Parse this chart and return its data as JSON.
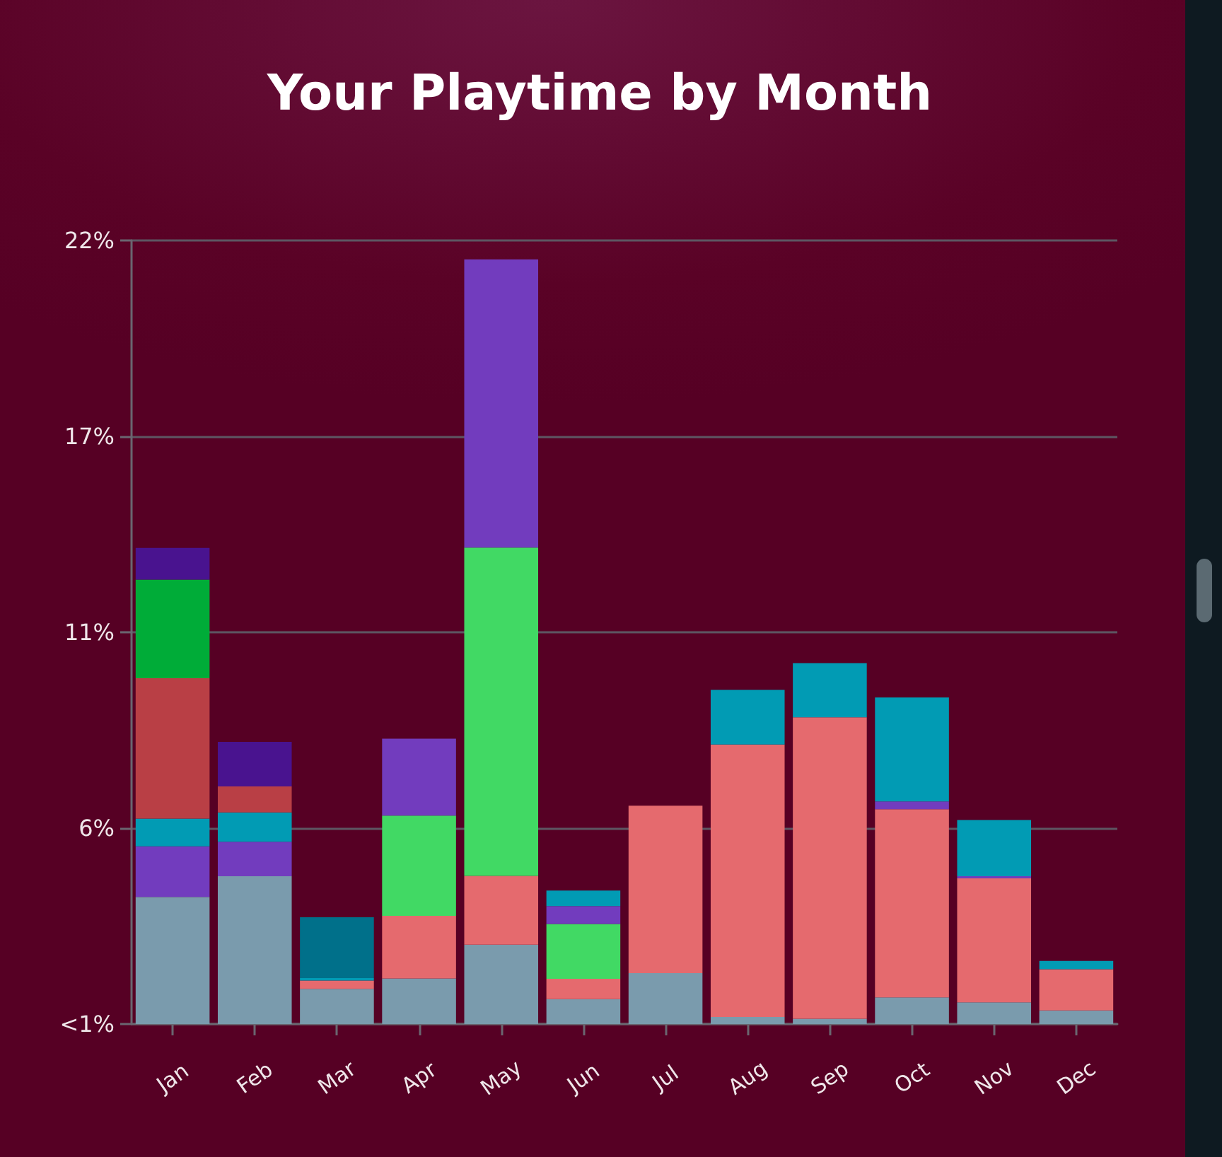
{
  "chart_data": {
    "type": "bar",
    "title": "Your Playtime by Month",
    "stacked": true,
    "categories": [
      "Jan",
      "Feb",
      "Mar",
      "Apr",
      "May",
      "Jun",
      "Jul",
      "Aug",
      "Sep",
      "Oct",
      "Nov",
      "Dec"
    ],
    "series": [
      {
        "color": "#7a9bad",
        "values": [
          3.57,
          4.15,
          0.99,
          1.28,
          2.23,
          0.7,
          1.43,
          0.2,
          0.15,
          0.75,
          0.61,
          0.38
        ]
      },
      {
        "color": "#e56a6e",
        "values": [
          null,
          null,
          0.23,
          1.76,
          1.93,
          0.57,
          4.7,
          7.65,
          8.46,
          5.28,
          3.48,
          1.16
        ]
      },
      {
        "color": "#41d964",
        "values": [
          null,
          null,
          null,
          2.81,
          9.22,
          1.54,
          null,
          null,
          null,
          null,
          null,
          null
        ]
      },
      {
        "color": "#723cbe",
        "values": [
          1.42,
          0.97,
          null,
          2.16,
          8.09,
          0.5,
          null,
          null,
          null,
          0.22,
          0.06,
          null
        ]
      },
      {
        "color": "#019bb4",
        "values": [
          0.78,
          0.82,
          0.07,
          null,
          null,
          0.44,
          null,
          1.53,
          1.52,
          2.92,
          1.58,
          0.23
        ]
      },
      {
        "color": "#b93f45",
        "values": [
          3.94,
          0.73,
          null,
          null,
          null,
          null,
          null,
          null,
          null,
          null,
          null,
          null
        ]
      },
      {
        "color": "#00ac38",
        "values": [
          2.77,
          null,
          null,
          null,
          null,
          null,
          null,
          null,
          null,
          null,
          null,
          null
        ]
      },
      {
        "color": "#49138f",
        "values": [
          0.89,
          1.25,
          null,
          null,
          null,
          null,
          null,
          null,
          null,
          null,
          null,
          null
        ]
      },
      {
        "color": "#00708a",
        "values": [
          null,
          null,
          1.71,
          null,
          null,
          null,
          null,
          null,
          null,
          null,
          null,
          null
        ]
      }
    ],
    "ylim": [
      0,
      22
    ],
    "yticks": [
      {
        "value": 0,
        "label": "<1%"
      },
      {
        "value": 5.5,
        "label": "6%"
      },
      {
        "value": 11,
        "label": "11%"
      },
      {
        "value": 16.5,
        "label": "17%"
      },
      {
        "value": 22,
        "label": "22%"
      }
    ],
    "grid": "y"
  }
}
